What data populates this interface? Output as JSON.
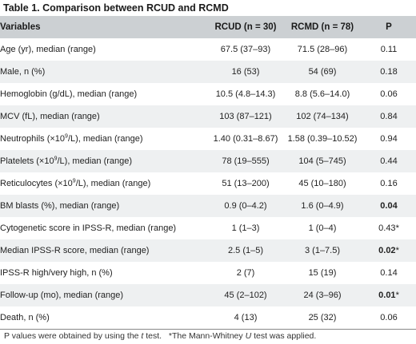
{
  "title": "Table 1. Comparison between RCUD and RCMD",
  "headers": {
    "variables": "Variables",
    "rcud": "RCUD (n = 30)",
    "rcmd": "RCMD (n = 78)",
    "p": "P"
  },
  "rows": [
    {
      "label": "Age (yr), median (range)",
      "rcud": "67.5 (37–93)",
      "rcmd": "71.5 (28–96)",
      "p": "0.11"
    },
    {
      "label": "Male, n (%)",
      "rcud": "16 (53)",
      "rcmd": "54 (69)",
      "p": "0.18"
    },
    {
      "label": "Hemoglobin (g/dL), median (range)",
      "rcud": "10.5 (4.8–14.3)",
      "rcmd": "8.8 (5.6–14.0)",
      "p": "0.06"
    },
    {
      "label": "MCV (fL), median (range)",
      "rcud": "103 (87–121)",
      "rcmd": "102 (74–134)",
      "p": "0.84"
    },
    {
      "label_pre": "Neutrophils (×10",
      "label_sup": "9",
      "label_post": "/L), median (range)",
      "rcud": "1.40 (0.31–8.67)",
      "rcmd": "1.58 (0.39–10.52)",
      "p": "0.94"
    },
    {
      "label_pre": "Platelets (×10",
      "label_sup": "9",
      "label_post": "/L), median (range)",
      "rcud": "78 (19–555)",
      "rcmd": "104 (5–745)",
      "p": "0.44"
    },
    {
      "label_pre": "Reticulocytes (×10",
      "label_sup": "9",
      "label_post": "/L), median (range)",
      "rcud": "51 (13–200)",
      "rcmd": "45 (10–180)",
      "p": "0.16"
    },
    {
      "label": "BM blasts (%), median (range)",
      "rcud": "0.9 (0–4.2)",
      "rcmd": "1.6 (0–4.9)",
      "p": "0.04",
      "p_bold": true
    },
    {
      "label": "Cytogenetic score in IPSS-R, median (range)",
      "rcud": "1 (1–3)",
      "rcmd": "1 (0–4)",
      "p": "0.43",
      "p_star": "*"
    },
    {
      "label": "Median IPSS-R score, median (range)",
      "rcud": "2.5 (1–5)",
      "rcmd": "3 (1–7.5)",
      "p": "0.02",
      "p_bold": true,
      "p_star": "*"
    },
    {
      "label": "IPSS-R high/very high, n (%)",
      "rcud": "2 (7)",
      "rcmd": "15 (19)",
      "p": "0.14"
    },
    {
      "label": "Follow-up (mo), median (range)",
      "rcud": "45 (2–102)",
      "rcmd": "24 (3–96)",
      "p": "0.01",
      "p_bold": true,
      "p_star": "*"
    },
    {
      "label": "Death, n (%)",
      "rcud": "4 (13)",
      "rcmd": "25 (32)",
      "p": "0.06"
    }
  ],
  "footnote": {
    "part1": "P values were obtained by using the ",
    "t_italic": "t",
    "part2": " test.   *The Mann-Whitney ",
    "u_italic": "U",
    "part3": " test was applied."
  }
}
